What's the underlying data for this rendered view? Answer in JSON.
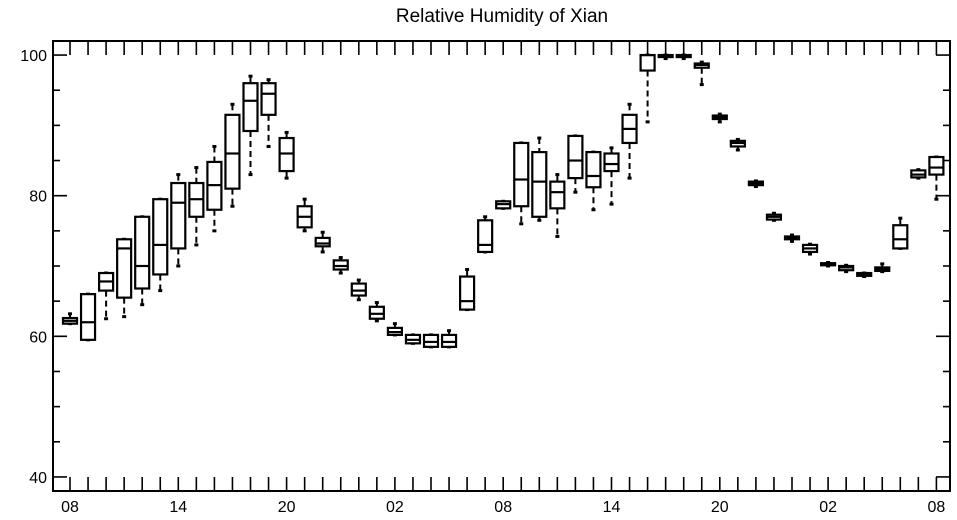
{
  "chart_data": {
    "type": "boxplot",
    "title": "Relative Humidity of Xian",
    "xlabel": "",
    "ylabel": "",
    "ylim": [
      38,
      102
    ],
    "y_ticks": [
      40,
      60,
      80,
      100
    ],
    "x_tick_labels": [
      {
        "index": 0,
        "label": "08"
      },
      {
        "index": 6,
        "label": "14"
      },
      {
        "index": 12,
        "label": "20"
      },
      {
        "index": 18,
        "label": "02"
      },
      {
        "index": 24,
        "label": "08"
      },
      {
        "index": 30,
        "label": "14"
      },
      {
        "index": 36,
        "label": "20"
      },
      {
        "index": 42,
        "label": "02"
      },
      {
        "index": 48,
        "label": "08"
      }
    ],
    "x_count": 49,
    "grid": false,
    "boxes": [
      {
        "x": 0,
        "min": 61.8,
        "q1": 61.8,
        "median": 62.2,
        "q3": 62.6,
        "max": 63.2
      },
      {
        "x": 1,
        "min": 59.5,
        "q1": 59.5,
        "median": 62.0,
        "q3": 66.0,
        "max": 66.0
      },
      {
        "x": 2,
        "min": 62.5,
        "q1": 66.5,
        "median": 67.8,
        "q3": 69.0,
        "max": 69.0
      },
      {
        "x": 3,
        "min": 62.8,
        "q1": 65.5,
        "median": 72.5,
        "q3": 73.8,
        "max": 73.8
      },
      {
        "x": 4,
        "min": 64.5,
        "q1": 66.8,
        "median": 70.0,
        "q3": 77.0,
        "max": 77.0
      },
      {
        "x": 5,
        "min": 66.5,
        "q1": 68.8,
        "median": 73.0,
        "q3": 79.5,
        "max": 79.5
      },
      {
        "x": 6,
        "min": 70.0,
        "q1": 72.5,
        "median": 79.0,
        "q3": 81.8,
        "max": 83.0
      },
      {
        "x": 7,
        "min": 73.0,
        "q1": 77.0,
        "median": 79.5,
        "q3": 81.8,
        "max": 84.0
      },
      {
        "x": 8,
        "min": 75.0,
        "q1": 78.0,
        "median": 81.5,
        "q3": 84.8,
        "max": 87.0
      },
      {
        "x": 9,
        "min": 78.5,
        "q1": 81.0,
        "median": 86.0,
        "q3": 91.5,
        "max": 93.0
      },
      {
        "x": 10,
        "min": 83.0,
        "q1": 89.2,
        "median": 93.5,
        "q3": 96.0,
        "max": 97.0
      },
      {
        "x": 11,
        "min": 87.0,
        "q1": 91.5,
        "median": 94.5,
        "q3": 96.0,
        "max": 96.5
      },
      {
        "x": 12,
        "min": 82.5,
        "q1": 83.5,
        "median": 86.0,
        "q3": 88.2,
        "max": 89.0
      },
      {
        "x": 13,
        "min": 75.0,
        "q1": 75.5,
        "median": 77.0,
        "q3": 78.5,
        "max": 79.5
      },
      {
        "x": 14,
        "min": 72.0,
        "q1": 72.8,
        "median": 73.2,
        "q3": 74.0,
        "max": 74.8
      },
      {
        "x": 15,
        "min": 69.0,
        "q1": 69.5,
        "median": 70.0,
        "q3": 70.8,
        "max": 71.2
      },
      {
        "x": 16,
        "min": 65.2,
        "q1": 65.8,
        "median": 66.5,
        "q3": 67.5,
        "max": 68.0
      },
      {
        "x": 17,
        "min": 62.2,
        "q1": 62.5,
        "median": 63.2,
        "q3": 64.2,
        "max": 64.8
      },
      {
        "x": 18,
        "min": 60.2,
        "q1": 60.2,
        "median": 60.6,
        "q3": 61.2,
        "max": 61.8
      },
      {
        "x": 19,
        "min": 59.0,
        "q1": 59.0,
        "median": 59.5,
        "q3": 60.2,
        "max": 60.2
      },
      {
        "x": 20,
        "min": 58.5,
        "q1": 58.5,
        "median": 59.2,
        "q3": 60.2,
        "max": 60.2
      },
      {
        "x": 21,
        "min": 58.5,
        "q1": 58.5,
        "median": 59.2,
        "q3": 60.2,
        "max": 60.8
      },
      {
        "x": 22,
        "min": 63.8,
        "q1": 63.8,
        "median": 65.0,
        "q3": 68.5,
        "max": 69.5
      },
      {
        "x": 23,
        "min": 72.0,
        "q1": 72.0,
        "median": 73.0,
        "q3": 76.5,
        "max": 77.0
      },
      {
        "x": 24,
        "min": 78.2,
        "q1": 78.2,
        "median": 78.8,
        "q3": 79.2,
        "max": 79.2
      },
      {
        "x": 25,
        "min": 76.0,
        "q1": 78.5,
        "median": 82.3,
        "q3": 87.5,
        "max": 87.5
      },
      {
        "x": 26,
        "min": 76.5,
        "q1": 77.0,
        "median": 82.0,
        "q3": 86.2,
        "max": 88.2
      },
      {
        "x": 27,
        "min": 74.2,
        "q1": 78.2,
        "median": 80.5,
        "q3": 82.0,
        "max": 83.0
      },
      {
        "x": 28,
        "min": 80.5,
        "q1": 82.5,
        "median": 85.0,
        "q3": 88.5,
        "max": 88.5
      },
      {
        "x": 29,
        "min": 78.0,
        "q1": 81.2,
        "median": 82.8,
        "q3": 86.2,
        "max": 86.2
      },
      {
        "x": 30,
        "min": 78.8,
        "q1": 83.5,
        "median": 84.5,
        "q3": 86.0,
        "max": 86.8
      },
      {
        "x": 31,
        "min": 82.5,
        "q1": 87.5,
        "median": 89.5,
        "q3": 91.5,
        "max": 93.0
      },
      {
        "x": 32,
        "min": 90.5,
        "q1": 97.8,
        "median": 100.0,
        "q3": 100.0,
        "max": 100.0
      },
      {
        "x": 33,
        "min": 99.5,
        "q1": 99.8,
        "median": 100.0,
        "q3": 100.0,
        "max": 100.0
      },
      {
        "x": 34,
        "min": 99.5,
        "q1": 99.8,
        "median": 100.0,
        "q3": 100.0,
        "max": 100.0
      },
      {
        "x": 35,
        "min": 95.8,
        "q1": 98.2,
        "median": 98.6,
        "q3": 98.8,
        "max": 99.0
      },
      {
        "x": 36,
        "min": 90.5,
        "q1": 90.9,
        "median": 91.2,
        "q3": 91.4,
        "max": 91.6
      },
      {
        "x": 37,
        "min": 86.5,
        "q1": 87.0,
        "median": 87.5,
        "q3": 87.8,
        "max": 88.0
      },
      {
        "x": 38,
        "min": 81.3,
        "q1": 81.5,
        "median": 81.8,
        "q3": 82.0,
        "max": 82.1
      },
      {
        "x": 39,
        "min": 76.5,
        "q1": 76.6,
        "median": 77.0,
        "q3": 77.3,
        "max": 77.5
      },
      {
        "x": 40,
        "min": 73.5,
        "q1": 73.8,
        "median": 74.0,
        "q3": 74.2,
        "max": 74.4
      },
      {
        "x": 41,
        "min": 71.7,
        "q1": 72.0,
        "median": 72.5,
        "q3": 73.0,
        "max": 73.1
      },
      {
        "x": 42,
        "min": 70.0,
        "q1": 70.1,
        "median": 70.3,
        "q3": 70.4,
        "max": 70.5
      },
      {
        "x": 43,
        "min": 69.2,
        "q1": 69.4,
        "median": 69.8,
        "q3": 70.0,
        "max": 70.1
      },
      {
        "x": 44,
        "min": 68.5,
        "q1": 68.6,
        "median": 68.8,
        "q3": 69.0,
        "max": 69.0
      },
      {
        "x": 45,
        "min": 69.2,
        "q1": 69.3,
        "median": 69.5,
        "q3": 69.8,
        "max": 70.3
      },
      {
        "x": 46,
        "min": 72.5,
        "q1": 72.5,
        "median": 73.8,
        "q3": 75.8,
        "max": 76.8
      },
      {
        "x": 47,
        "min": 82.5,
        "q1": 82.6,
        "median": 83.0,
        "q3": 83.6,
        "max": 83.7
      },
      {
        "x": 48,
        "min": 79.5,
        "q1": 83.0,
        "median": 84.0,
        "q3": 85.5,
        "max": 85.5
      }
    ]
  }
}
